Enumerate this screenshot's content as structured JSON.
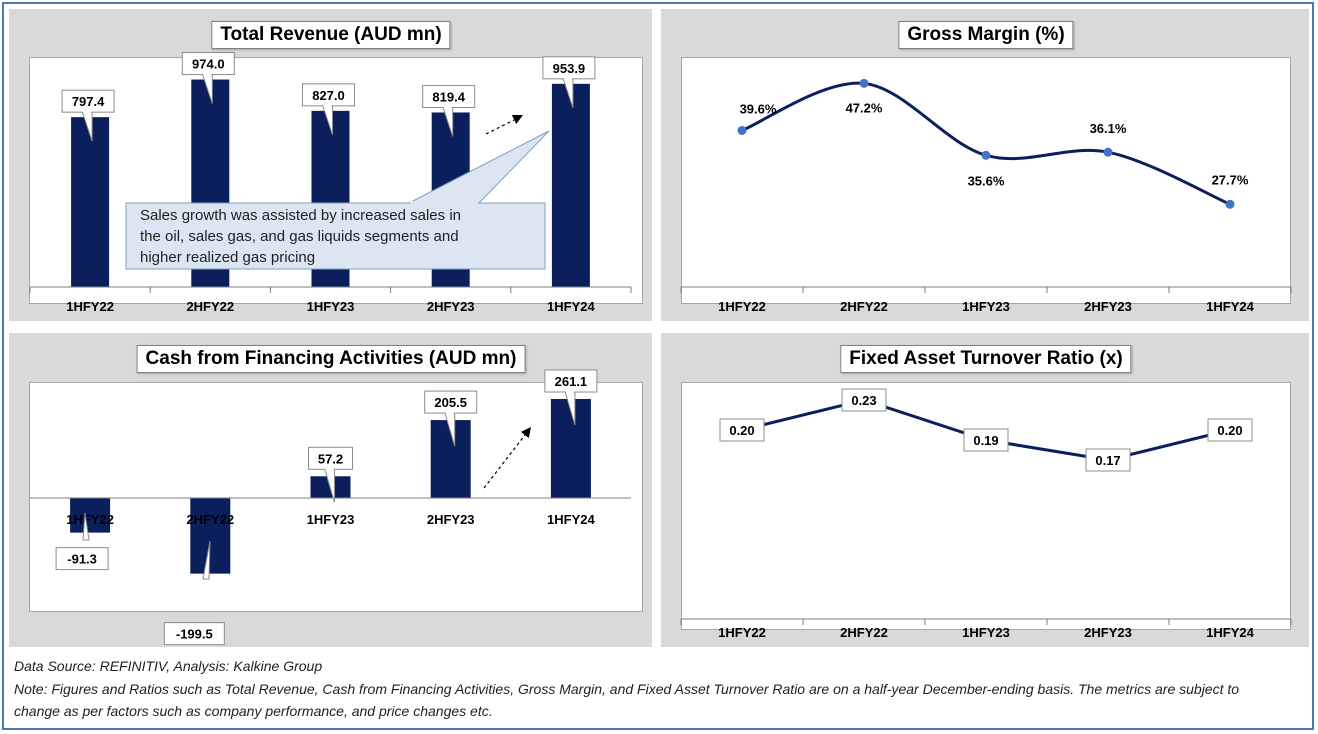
{
  "colors": {
    "bar": "#0b1f5c",
    "line": "#0b1f5c",
    "marker": "#4472c4",
    "panel": "#d9d9d9"
  },
  "charts": [
    {
      "id": "revenue",
      "chart_data": {
        "type": "bar",
        "title": "Total Revenue (AUD mn)",
        "categories": [
          "1HFY22",
          "2HFY22",
          "1HFY23",
          "2HFY23",
          "1HFY24"
        ],
        "values": [
          797.4,
          974.0,
          827.0,
          819.4,
          953.9
        ],
        "value_labels": [
          "797.4",
          "974.0",
          "827.0",
          "819.4",
          "953.9"
        ],
        "ylim": [
          0,
          1000
        ],
        "grid": false,
        "annotation": "Sales growth was assisted by increased sales in the oil, sales gas, and gas liquids segments and higher realized gas pricing"
      }
    },
    {
      "id": "gross-margin",
      "chart_data": {
        "type": "line",
        "title": "Gross Margin (%)",
        "categories": [
          "1HFY22",
          "2HFY22",
          "1HFY23",
          "2HFY23",
          "1HFY24"
        ],
        "values": [
          39.6,
          47.2,
          35.6,
          36.1,
          27.7
        ],
        "value_labels": [
          "39.6%",
          "47.2%",
          "35.6%",
          "36.1%",
          "27.7%"
        ],
        "ylim": [
          -50,
          50
        ],
        "grid": false
      }
    },
    {
      "id": "financing",
      "chart_data": {
        "type": "bar",
        "title": "Cash from Financing Activities (AUD mn)",
        "categories": [
          "1HFY22",
          "2HFY22",
          "1HFY23",
          "2HFY23",
          "1HFY24"
        ],
        "values": [
          -91.3,
          -199.5,
          57.2,
          205.5,
          261.1
        ],
        "value_labels": [
          "-91.3",
          "-199.5",
          "57.2",
          "205.5",
          "261.1"
        ],
        "ylim": [
          -300,
          300
        ],
        "grid": false
      }
    },
    {
      "id": "fixed-asset-turnover",
      "chart_data": {
        "type": "line",
        "title": "Fixed Asset Turnover Ratio (x)",
        "categories": [
          "1HFY22",
          "2HFY22",
          "1HFY23",
          "2HFY23",
          "1HFY24"
        ],
        "values": [
          0.2,
          0.23,
          0.19,
          0.17,
          0.2
        ],
        "value_labels": [
          "0.20",
          "0.23",
          "0.19",
          "0.17",
          "0.20"
        ],
        "ylim": [
          -0.3,
          0.3
        ],
        "grid": false
      }
    }
  ],
  "footer": {
    "source": "Data Source: REFINITIV, Analysis: Kalkine Group",
    "note_line1": "Note: Figures and Ratios such as Total Revenue, Cash from Financing Activities, Gross Margin, and  Fixed Asset Turnover Ratio are on a half-year December-ending basis. The metrics are subject to",
    "note_line2": "change as per factors such as company performance, and price changes etc."
  }
}
